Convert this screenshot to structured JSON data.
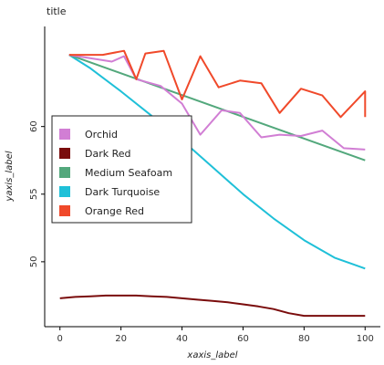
{
  "chart_data": {
    "type": "line",
    "title": "title",
    "xlabel": "xaxis_label",
    "ylabel": "yaxis_label",
    "xlim": [
      -5,
      105
    ],
    "ylim": [
      45.2,
      67.4
    ],
    "x_ticks": [
      0,
      20,
      40,
      60,
      80,
      100
    ],
    "y_ticks": [
      50,
      55,
      60
    ],
    "grid": false,
    "legend_position": "center-left",
    "series": [
      {
        "name": "Orchid",
        "color": "#d17ed4",
        "points": [
          [
            3,
            65.3
          ],
          [
            17,
            64.8
          ],
          [
            21,
            65.2
          ],
          [
            25,
            63.5
          ],
          [
            33,
            63.0
          ],
          [
            40,
            61.7
          ],
          [
            46,
            59.4
          ],
          [
            53,
            61.2
          ],
          [
            59,
            61.0
          ],
          [
            66,
            59.2
          ],
          [
            72,
            59.4
          ],
          [
            79,
            59.3
          ],
          [
            86,
            59.7
          ],
          [
            93,
            58.4
          ],
          [
            100,
            58.3
          ]
        ]
      },
      {
        "name": "Dark Red",
        "color": "#7a0c0c",
        "points": [
          [
            0,
            47.3
          ],
          [
            5,
            47.4
          ],
          [
            10,
            47.45
          ],
          [
            15,
            47.5
          ],
          [
            20,
            47.5
          ],
          [
            25,
            47.5
          ],
          [
            30,
            47.45
          ],
          [
            35,
            47.4
          ],
          [
            40,
            47.3
          ],
          [
            45,
            47.2
          ],
          [
            50,
            47.1
          ],
          [
            55,
            47.0
          ],
          [
            60,
            46.85
          ],
          [
            65,
            46.7
          ],
          [
            70,
            46.5
          ],
          [
            75,
            46.2
          ],
          [
            80,
            46.0
          ],
          [
            85,
            46.0
          ],
          [
            90,
            46.0
          ],
          [
            95,
            46.0
          ],
          [
            100,
            46.0
          ]
        ]
      },
      {
        "name": "Medium Seafoam",
        "color": "#53a87c",
        "points": [
          [
            3,
            65.3
          ],
          [
            100,
            57.5
          ]
        ]
      },
      {
        "name": "Dark Turquoise",
        "color": "#1fc0d8",
        "points": [
          [
            3,
            65.3
          ],
          [
            10,
            64.3
          ],
          [
            20,
            62.6
          ],
          [
            30,
            60.8
          ],
          [
            40,
            59.0
          ],
          [
            50,
            57.0
          ],
          [
            60,
            55.0
          ],
          [
            70,
            53.2
          ],
          [
            80,
            51.6
          ],
          [
            90,
            50.3
          ],
          [
            100,
            49.5
          ]
        ]
      },
      {
        "name": "Orange Red",
        "color": "#f0492a",
        "points": [
          [
            3,
            65.3
          ],
          [
            14,
            65.3
          ],
          [
            21,
            65.6
          ],
          [
            25,
            63.5
          ],
          [
            28,
            65.4
          ],
          [
            34,
            65.6
          ],
          [
            40,
            62.0
          ],
          [
            46,
            65.2
          ],
          [
            52,
            62.9
          ],
          [
            59,
            63.4
          ],
          [
            66,
            63.2
          ],
          [
            72,
            61.0
          ],
          [
            79,
            62.8
          ],
          [
            86,
            62.3
          ],
          [
            92,
            60.7
          ],
          [
            100,
            62.6
          ],
          [
            100,
            60.7
          ]
        ]
      }
    ]
  }
}
